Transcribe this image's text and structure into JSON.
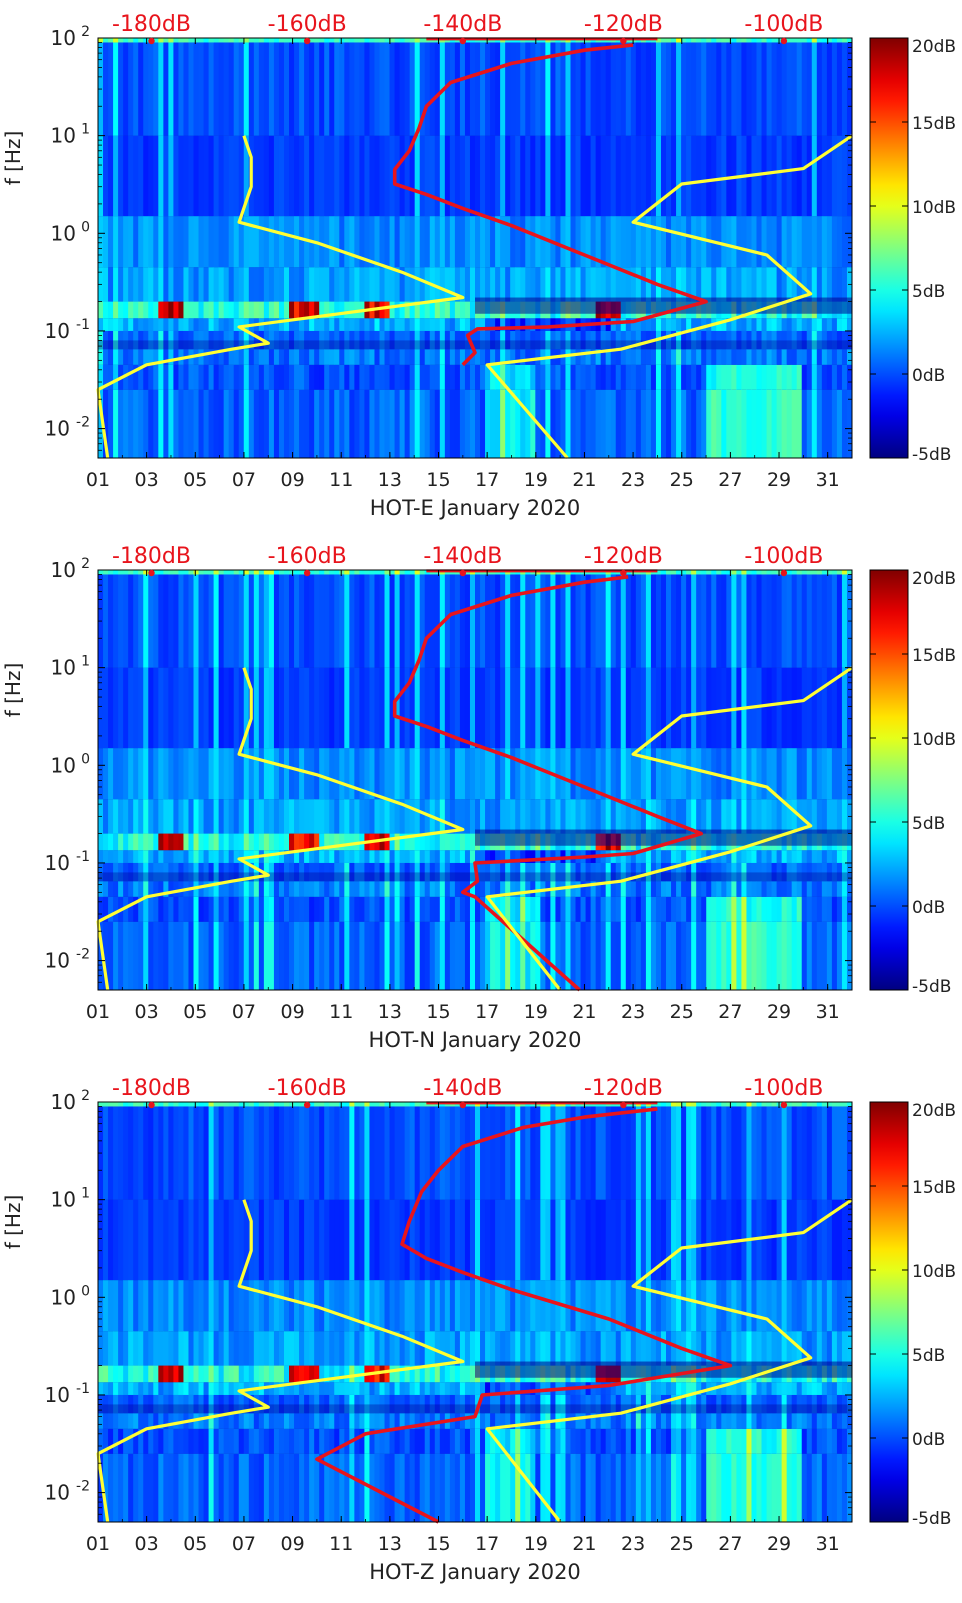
{
  "chart_data": [
    {
      "type": "heatmap",
      "component": "HOT-E",
      "xlabel": "HOT-E January 2020",
      "ylabel": "f [Hz]",
      "x_tick_labels": [
        "01",
        "03",
        "05",
        "07",
        "09",
        "11",
        "13",
        "15",
        "17",
        "19",
        "21",
        "23",
        "25",
        "27",
        "29",
        "31"
      ],
      "x_tick_days": [
        1,
        3,
        5,
        7,
        9,
        11,
        13,
        15,
        17,
        19,
        21,
        23,
        25,
        27,
        29,
        31
      ],
      "xlim": [
        1,
        32
      ],
      "y_tick_exponents": [
        "-2",
        "-1",
        "0",
        "1",
        "2"
      ],
      "y_tick_base": "10",
      "ylim_hz": [
        0.005,
        100
      ],
      "top_axis_labels": [
        "-180dB",
        "-160dB",
        "-140dB",
        "-120dB",
        "-100dB"
      ],
      "top_axis_days": [
        3.2,
        9.6,
        16.0,
        22.6,
        29.2
      ],
      "colorbar_labels": [
        "20dB",
        "15dB",
        "10dB",
        "5dB",
        "0dB",
        "-5dB"
      ],
      "colorbar_range_db": [
        -5,
        20
      ],
      "overlay_series": [
        {
          "name": "red noise level curve",
          "color": "#e8141c",
          "points": [
            [
              16.0,
              0.045
            ],
            [
              16.5,
              0.06
            ],
            [
              16.2,
              0.09
            ],
            [
              16.6,
              0.105
            ],
            [
              19.5,
              0.11
            ],
            [
              23.0,
              0.125
            ],
            [
              26.0,
              0.2
            ],
            [
              24.0,
              0.3
            ],
            [
              21.0,
              0.6
            ],
            [
              18.0,
              1.2
            ],
            [
              16.0,
              1.8
            ],
            [
              14.5,
              2.5
            ],
            [
              13.2,
              3.2
            ],
            [
              13.2,
              4.5
            ],
            [
              13.8,
              7
            ],
            [
              14.2,
              12
            ],
            [
              14.5,
              20
            ],
            [
              15.5,
              35
            ],
            [
              18.0,
              55
            ],
            [
              21.0,
              75
            ],
            [
              23.0,
              85
            ]
          ]
        },
        {
          "name": "yellow reference curves",
          "color": "#ffff33",
          "points": [
            [
              1.4,
              0.005
            ],
            [
              1.0,
              0.025
            ],
            [
              3.0,
              0.045
            ],
            [
              6.5,
              0.065
            ],
            [
              8.0,
              0.075
            ],
            [
              6.8,
              0.11
            ],
            [
              10.0,
              0.14
            ],
            [
              16.0,
              0.22
            ],
            [
              13.5,
              0.4
            ],
            [
              10.0,
              0.8
            ],
            [
              6.8,
              1.3
            ],
            [
              7.3,
              3.0
            ],
            [
              7.3,
              6.0
            ],
            [
              7.0,
              10.0
            ]
          ]
        },
        {
          "name": "yellow reference curves (high)",
          "color": "#ffff33",
          "points": [
            [
              20.3,
              0.005
            ],
            [
              17.0,
              0.045
            ],
            [
              22.5,
              0.065
            ],
            [
              27.0,
              0.13
            ],
            [
              30.3,
              0.24
            ],
            [
              28.5,
              0.6
            ],
            [
              23.0,
              1.3
            ],
            [
              25.0,
              3.2
            ],
            [
              30.0,
              4.6
            ],
            [
              32.0,
              10.0
            ]
          ]
        }
      ]
    },
    {
      "type": "heatmap",
      "component": "HOT-N",
      "xlabel": "HOT-N January 2020",
      "ylabel": "f [Hz]",
      "x_tick_labels": [
        "01",
        "03",
        "05",
        "07",
        "09",
        "11",
        "13",
        "15",
        "17",
        "19",
        "21",
        "23",
        "25",
        "27",
        "29",
        "31"
      ],
      "x_tick_days": [
        1,
        3,
        5,
        7,
        9,
        11,
        13,
        15,
        17,
        19,
        21,
        23,
        25,
        27,
        29,
        31
      ],
      "xlim": [
        1,
        32
      ],
      "y_tick_exponents": [
        "-2",
        "-1",
        "0",
        "1",
        "2"
      ],
      "y_tick_base": "10",
      "ylim_hz": [
        0.005,
        100
      ],
      "top_axis_labels": [
        "-180dB",
        "-160dB",
        "-140dB",
        "-120dB",
        "-100dB"
      ],
      "top_axis_days": [
        3.2,
        9.6,
        16.0,
        22.6,
        29.2
      ],
      "colorbar_labels": [
        "20dB",
        "15dB",
        "10dB",
        "5dB",
        "0dB",
        "-5dB"
      ],
      "colorbar_range_db": [
        -5,
        20
      ],
      "overlay_series": [
        {
          "name": "red noise level curve",
          "color": "#e8141c",
          "points": [
            [
              20.8,
              0.005
            ],
            [
              16.5,
              0.045
            ],
            [
              16.0,
              0.05
            ],
            [
              16.6,
              0.065
            ],
            [
              16.5,
              0.1
            ],
            [
              21.0,
              0.115
            ],
            [
              23.0,
              0.125
            ],
            [
              25.8,
              0.2
            ],
            [
              24.0,
              0.3
            ],
            [
              21.0,
              0.6
            ],
            [
              18.0,
              1.2
            ],
            [
              16.0,
              1.8
            ],
            [
              14.5,
              2.5
            ],
            [
              13.2,
              3.2
            ],
            [
              13.2,
              4.5
            ],
            [
              13.8,
              7
            ],
            [
              14.2,
              12
            ],
            [
              14.5,
              20
            ],
            [
              15.5,
              35
            ],
            [
              18.0,
              55
            ],
            [
              21.0,
              75
            ],
            [
              22.8,
              85
            ]
          ]
        },
        {
          "name": "yellow reference curves",
          "color": "#ffff33",
          "points": [
            [
              1.4,
              0.005
            ],
            [
              1.0,
              0.025
            ],
            [
              3.0,
              0.045
            ],
            [
              6.5,
              0.065
            ],
            [
              8.0,
              0.075
            ],
            [
              6.8,
              0.11
            ],
            [
              10.0,
              0.14
            ],
            [
              16.0,
              0.22
            ],
            [
              13.5,
              0.4
            ],
            [
              10.0,
              0.8
            ],
            [
              6.8,
              1.3
            ],
            [
              7.3,
              3.0
            ],
            [
              7.3,
              6.0
            ],
            [
              7.0,
              10.0
            ]
          ]
        },
        {
          "name": "yellow reference curves (high)",
          "color": "#ffff33",
          "points": [
            [
              20.0,
              0.005
            ],
            [
              17.0,
              0.045
            ],
            [
              22.5,
              0.065
            ],
            [
              27.0,
              0.13
            ],
            [
              30.3,
              0.24
            ],
            [
              28.5,
              0.6
            ],
            [
              23.0,
              1.3
            ],
            [
              25.0,
              3.2
            ],
            [
              30.0,
              4.6
            ],
            [
              32.0,
              10.0
            ]
          ]
        }
      ]
    },
    {
      "type": "heatmap",
      "component": "HOT-Z",
      "xlabel": "HOT-Z January 2020",
      "ylabel": "f [Hz]",
      "x_tick_labels": [
        "01",
        "03",
        "05",
        "07",
        "09",
        "11",
        "13",
        "15",
        "17",
        "19",
        "21",
        "23",
        "25",
        "27",
        "29",
        "31"
      ],
      "x_tick_days": [
        1,
        3,
        5,
        7,
        9,
        11,
        13,
        15,
        17,
        19,
        21,
        23,
        25,
        27,
        29,
        31
      ],
      "xlim": [
        1,
        32
      ],
      "y_tick_exponents": [
        "-2",
        "-1",
        "0",
        "1",
        "2"
      ],
      "y_tick_base": "10",
      "ylim_hz": [
        0.005,
        100
      ],
      "top_axis_labels": [
        "-180dB",
        "-160dB",
        "-140dB",
        "-120dB",
        "-100dB"
      ],
      "top_axis_days": [
        3.2,
        9.6,
        16.0,
        22.6,
        29.2
      ],
      "colorbar_labels": [
        "20dB",
        "15dB",
        "10dB",
        "5dB",
        "0dB",
        "-5dB"
      ],
      "colorbar_range_db": [
        -5,
        20
      ],
      "overlay_series": [
        {
          "name": "red noise level curve",
          "color": "#e8141c",
          "points": [
            [
              15.0,
              0.005
            ],
            [
              10.0,
              0.022
            ],
            [
              12.0,
              0.04
            ],
            [
              16.5,
              0.06
            ],
            [
              16.8,
              0.1
            ],
            [
              22.0,
              0.125
            ],
            [
              27.0,
              0.2
            ],
            [
              25.0,
              0.3
            ],
            [
              22.0,
              0.6
            ],
            [
              18.0,
              1.2
            ],
            [
              16.0,
              1.8
            ],
            [
              14.5,
              2.5
            ],
            [
              13.5,
              3.5
            ],
            [
              13.8,
              6
            ],
            [
              14.3,
              12
            ],
            [
              15.0,
              20
            ],
            [
              16.0,
              35
            ],
            [
              18.5,
              55
            ],
            [
              21.0,
              70
            ],
            [
              24.0,
              85
            ]
          ]
        },
        {
          "name": "yellow reference curves",
          "color": "#ffff33",
          "points": [
            [
              1.4,
              0.005
            ],
            [
              1.0,
              0.025
            ],
            [
              3.0,
              0.045
            ],
            [
              6.5,
              0.065
            ],
            [
              8.0,
              0.075
            ],
            [
              6.8,
              0.11
            ],
            [
              10.0,
              0.14
            ],
            [
              16.0,
              0.22
            ],
            [
              13.5,
              0.4
            ],
            [
              10.0,
              0.8
            ],
            [
              6.8,
              1.3
            ],
            [
              7.3,
              3.0
            ],
            [
              7.3,
              6.0
            ],
            [
              7.0,
              10.0
            ]
          ]
        },
        {
          "name": "yellow reference curves (high)",
          "color": "#ffff33",
          "points": [
            [
              20.0,
              0.005
            ],
            [
              17.0,
              0.045
            ],
            [
              22.5,
              0.065
            ],
            [
              27.0,
              0.13
            ],
            [
              30.3,
              0.24
            ],
            [
              28.5,
              0.6
            ],
            [
              23.0,
              1.3
            ],
            [
              25.0,
              3.2
            ],
            [
              30.0,
              4.6
            ],
            [
              32.0,
              10.0
            ]
          ]
        }
      ]
    }
  ]
}
